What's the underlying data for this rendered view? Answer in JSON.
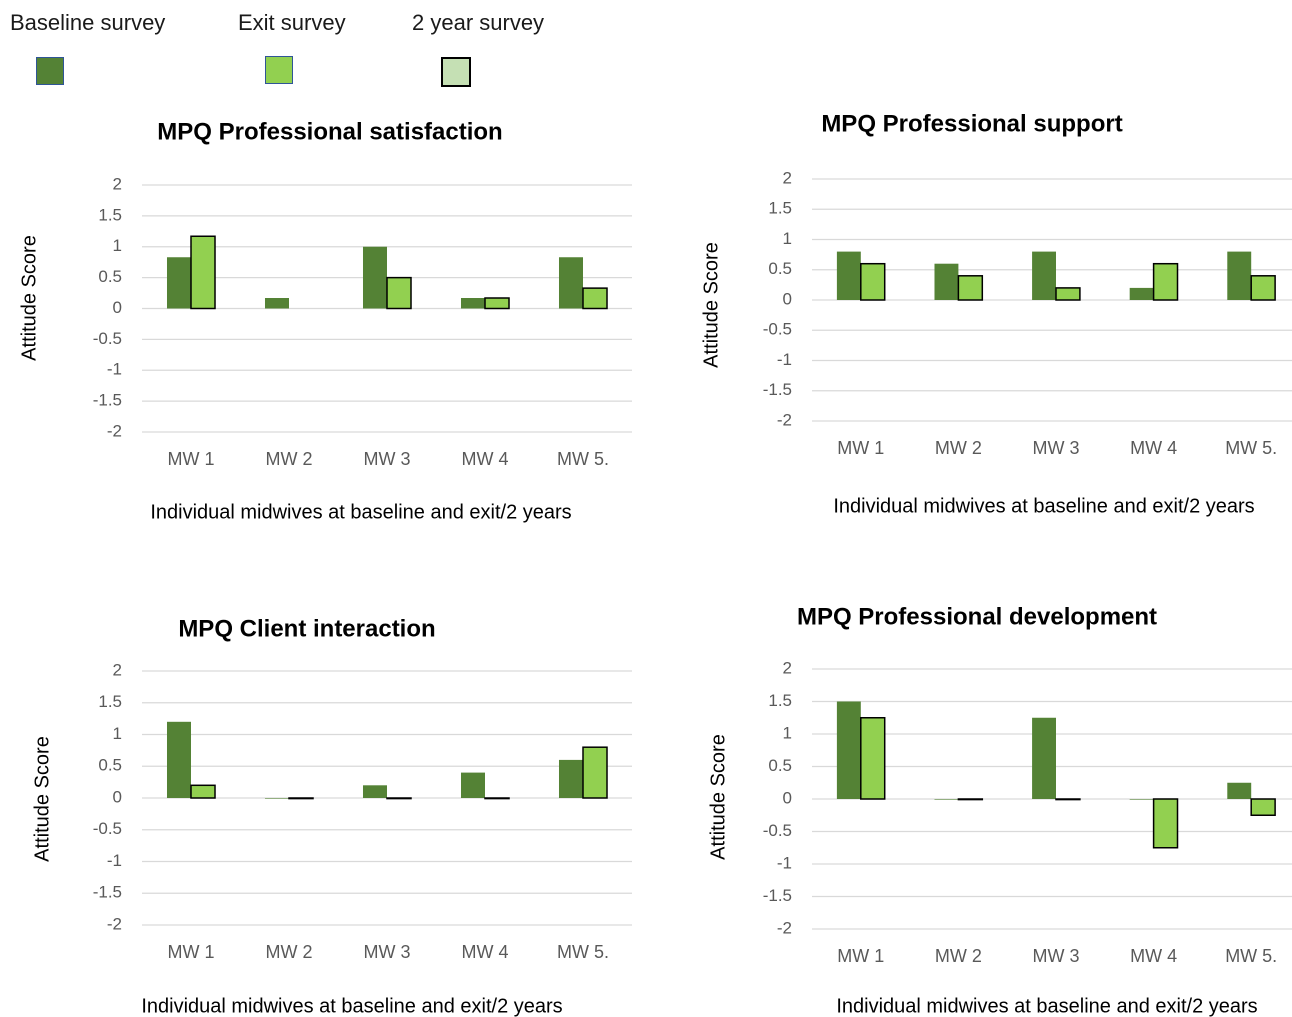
{
  "legend": {
    "items": [
      {
        "label": "Baseline survey",
        "color": "#548235",
        "border": "#2F5597"
      },
      {
        "label": "Exit survey",
        "color": "#92D050",
        "border": "#2F5597"
      },
      {
        "label": "2 year survey",
        "color": "#C5E0B4",
        "border": "#000000"
      }
    ]
  },
  "chart_data": [
    {
      "type": "bar",
      "title": "MPQ Professional satisfaction",
      "xlabel": "Individual midwives at baseline and exit/2 years",
      "ylabel": "Attitude  Score",
      "categories": [
        "MW 1",
        "MW 2",
        "MW 3",
        "MW 4",
        "MW 5."
      ],
      "ylim": [
        -2,
        2
      ],
      "yticks": [
        "2",
        "1.5",
        "1",
        "0.5",
        "0",
        "-0.5",
        "-1",
        "-1.5",
        "-2"
      ],
      "series": [
        {
          "name": "Baseline survey",
          "values": [
            0.83,
            0.17,
            1.0,
            0.17,
            0.83
          ]
        },
        {
          "name": "Exit survey",
          "values": [
            1.17,
            null,
            0.5,
            0.17,
            0.33
          ]
        }
      ]
    },
    {
      "type": "bar",
      "title": "MPQ Professional support",
      "xlabel": "Individual midwives at baseline and exit/2 years",
      "ylabel": "Attitude Score",
      "categories": [
        "MW 1",
        "MW 2",
        "MW 3",
        "MW 4",
        "MW 5."
      ],
      "ylim": [
        -2,
        2
      ],
      "yticks": [
        "2",
        "1.5",
        "1",
        "0.5",
        "0",
        "-0.5",
        "-1",
        "-1.5",
        "-2"
      ],
      "series": [
        {
          "name": "Baseline survey",
          "values": [
            0.8,
            0.6,
            0.8,
            0.2,
            0.8
          ]
        },
        {
          "name": "Exit survey",
          "values": [
            0.6,
            0.4,
            0.2,
            0.6,
            0.4
          ]
        }
      ]
    },
    {
      "type": "bar",
      "title": "MPQ Client interaction",
      "xlabel": "Individual midwives at baseline and exit/2 years",
      "ylabel": "Attitude Score",
      "categories": [
        "MW 1",
        "MW 2",
        "MW 3",
        "MW 4",
        "MW 5."
      ],
      "ylim": [
        -2,
        2
      ],
      "yticks": [
        "2",
        "1.5",
        "1",
        "0.5",
        "0",
        "-0.5",
        "-1",
        "-1.5",
        "-2"
      ],
      "series": [
        {
          "name": "Baseline survey",
          "values": [
            1.2,
            0,
            0.2,
            0.4,
            0.6
          ]
        },
        {
          "name": "Exit survey",
          "values": [
            0.2,
            0,
            0,
            0,
            0.8
          ]
        }
      ]
    },
    {
      "type": "bar",
      "title": "MPQ Professional development",
      "xlabel": "Individual midwives at baseline and exit/2 years",
      "ylabel": "Attitude Score",
      "categories": [
        "MW 1",
        "MW 2",
        "MW 3",
        "MW 4",
        "MW 5."
      ],
      "ylim": [
        -2,
        2
      ],
      "yticks": [
        "2",
        "1.5",
        "1",
        "0.5",
        "0",
        "-0.5",
        "-1",
        "-1.5",
        "-2"
      ],
      "series": [
        {
          "name": "Baseline survey",
          "values": [
            1.5,
            0,
            1.25,
            0,
            0.25
          ]
        },
        {
          "name": "Exit survey",
          "values": [
            1.25,
            0,
            0,
            -0.75,
            -0.25
          ]
        }
      ]
    }
  ]
}
